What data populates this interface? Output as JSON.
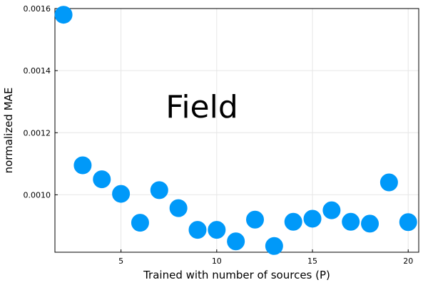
{
  "chart_data": {
    "type": "scatter",
    "title": "",
    "xlabel": "Trained with number of sources (P)",
    "ylabel": "normalized MAE",
    "annotation": "Field",
    "xlim": [
      1.55,
      20.55
    ],
    "ylim": [
      0.000815,
      0.0016
    ],
    "x_ticks": [
      5,
      10,
      15,
      20
    ],
    "y_ticks": [
      0.001,
      0.0012,
      0.0014,
      0.0016
    ],
    "y_tick_labels": [
      "0.0010",
      "0.0012",
      "0.0014",
      "0.0016"
    ],
    "grid": true,
    "legend": "none",
    "series": [
      {
        "color": "#0099f9",
        "x": [
          2,
          3,
          4,
          5,
          6,
          7,
          8,
          9,
          10,
          11,
          12,
          13,
          14,
          15,
          16,
          17,
          18,
          19,
          20
        ],
        "y": [
          0.00158,
          0.001095,
          0.00105,
          0.001003,
          0.00091,
          0.001015,
          0.000957,
          0.000887,
          0.000887,
          0.00085,
          0.00092,
          0.000835,
          0.000913,
          0.000923,
          0.00095,
          0.000913,
          0.000907,
          0.00104,
          0.000912
        ]
      }
    ]
  }
}
